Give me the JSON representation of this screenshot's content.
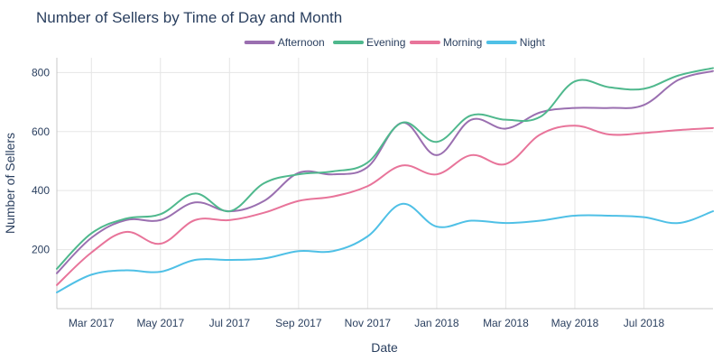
{
  "chart_data": {
    "type": "line",
    "title": "Number of Sellers by Time of Day and Month",
    "xlabel": "Date",
    "ylabel": "Number of Sellers",
    "x": [
      "2017-02",
      "2017-03",
      "2017-04",
      "2017-05",
      "2017-06",
      "2017-07",
      "2017-08",
      "2017-09",
      "2017-10",
      "2017-11",
      "2017-12",
      "2018-01",
      "2018-02",
      "2018-03",
      "2018-04",
      "2018-05",
      "2018-06",
      "2018-07",
      "2018-08",
      "2018-09"
    ],
    "x_ticks": [
      "Mar 2017",
      "May 2017",
      "Jul 2017",
      "Sep 2017",
      "Nov 2017",
      "Jan 2018",
      "Mar 2018",
      "May 2018",
      "Jul 2018"
    ],
    "y_ticks": [
      200,
      400,
      600,
      800
    ],
    "ylim": [
      0,
      850
    ],
    "grid": true,
    "legend_position": "top-center",
    "series": [
      {
        "name": "Afternoon",
        "color": "#9a6fb0",
        "values": [
          120,
          240,
          300,
          300,
          360,
          330,
          365,
          460,
          455,
          480,
          630,
          520,
          640,
          610,
          665,
          680,
          680,
          690,
          775,
          805
        ]
      },
      {
        "name": "Evening",
        "color": "#4fb88d",
        "values": [
          135,
          255,
          305,
          320,
          390,
          330,
          425,
          455,
          465,
          495,
          630,
          565,
          655,
          640,
          650,
          770,
          750,
          745,
          790,
          815
        ]
      },
      {
        "name": "Morning",
        "color": "#e8749a",
        "values": [
          80,
          190,
          260,
          220,
          300,
          300,
          325,
          365,
          380,
          415,
          485,
          455,
          520,
          490,
          590,
          620,
          590,
          595,
          605,
          612
        ]
      },
      {
        "name": "Night",
        "color": "#4fc0e6",
        "values": [
          55,
          115,
          130,
          125,
          165,
          165,
          170,
          195,
          195,
          245,
          355,
          278,
          298,
          290,
          298,
          315,
          315,
          310,
          290,
          330
        ]
      }
    ]
  }
}
